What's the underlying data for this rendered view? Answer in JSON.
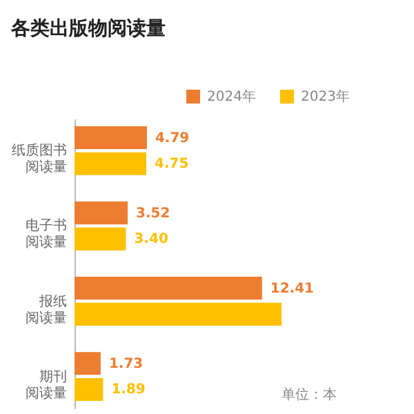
{
  "chart_data": {
    "type": "bar",
    "title": "各类出版物阅读量",
    "orientation": "horizontal",
    "categories": [
      "纸质图书阅读量",
      "电子书阅读量",
      "报纸阅读量",
      "期刊阅读量"
    ],
    "series": [
      {
        "name": "2024年",
        "color": "#ed7d31",
        "values": [
          4.79,
          3.52,
          12.41,
          1.73
        ],
        "value_labels": [
          "4.79",
          "3.52",
          "12.41",
          "1.73"
        ]
      },
      {
        "name": "2023年",
        "color": "#ffc000",
        "values": [
          4.75,
          3.4,
          13.7,
          1.89
        ],
        "value_labels": [
          "4.75",
          "3.40",
          null,
          "1.89"
        ]
      }
    ],
    "legend": "top right",
    "grid": false,
    "annotations": [
      "单位：本"
    ]
  }
}
